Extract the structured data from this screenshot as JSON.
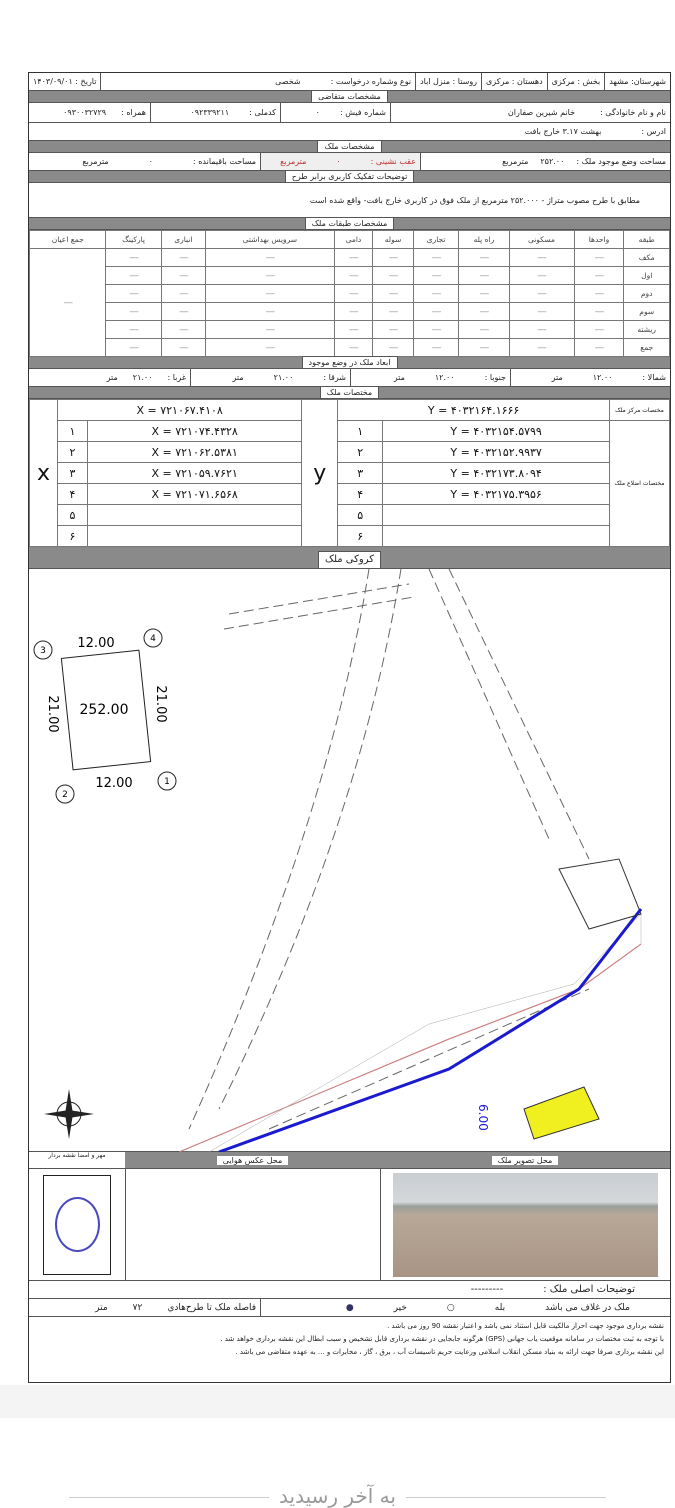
{
  "header": {
    "city": "شهرستان: مشهد",
    "section": "بخش : مرکزی",
    "district": "دهستان : مرکزی",
    "village": "روستا : منزل اباد",
    "request_type_label": "نوع وشماره درخواست :",
    "request_type": "شخصی",
    "date": "تاریخ : ۱۴۰۳/۰۹/۰۱"
  },
  "applicant": {
    "title": "مشخصات متقاضی",
    "name_label": "نام و نام خانوادگی :",
    "name": "خانم شیرین صفاران",
    "receipt_label": "شماره فیش :",
    "receipt": "۰",
    "national_id_label": "کدملی :",
    "national_id": "۰۹۲۳۳۹۲۱۱",
    "mobile_label": "همراه :",
    "mobile": "۰۹۳۰۰۳۲۷۲۹",
    "address_label": "ادرس :",
    "address": "بهشت ۳.۱۷ خارج بافت"
  },
  "property": {
    "title": "مشخصات ملک",
    "area_label": "مساحت وضع موجود ملک :",
    "area": "۲۵۲.۰۰",
    "unit": "مترمربع",
    "setback_label": "عقب نشینی :",
    "setback": "۰",
    "remaining_label": "مساحت باقیمانده :",
    "remaining": "۰"
  },
  "usage": {
    "title": "توضیحات تفکیک کاربری برابر طرح",
    "text": "مطابق با طرح مصوب متراژ - ۲۵۲.۰۰۰ مترمربع از ملک فوق در کاربری خارج بافت- واقع شده است"
  },
  "floors": {
    "title": "مشخصات طبقات ملک",
    "headers": [
      "طبقه",
      "واحدها",
      "مسکونی",
      "راه پله",
      "تجاری",
      "سوله",
      "دامی",
      "سرویس بهداشتی",
      "انباری",
      "پارکینگ",
      "جمع اعیان"
    ],
    "rows": [
      "مکف",
      "اول",
      "دوم",
      "سوم",
      "ریشته",
      "جمع"
    ],
    "empty": "-----"
  },
  "dimensions": {
    "title": "ابعاد ملک در وضع موجود",
    "north_label": "شمالا :",
    "north": "۱۲.۰۰",
    "south_label": "جنوبا :",
    "south": "۱۲.۰۰",
    "east_label": "شرقا :",
    "east": "۲۱.۰۰",
    "west_label": "غربا :",
    "west": "۲۱.۰۰",
    "unit": "متر"
  },
  "coords": {
    "title": "مختصات ملک",
    "center_label": "مختصات مرکز ملک",
    "corners_label": "مختصات اضلاع ملک",
    "x_axis": "x",
    "y_axis": "y",
    "x_center": "X = ۷۲۱۰۶۷.۴۱۰۸",
    "y_center": "Y = ۴۰۳۲۱۶۴.۱۶۶۶",
    "points": [
      {
        "n": "۱",
        "x": "X = ۷۲۱۰۷۴.۴۳۲۸",
        "y": "Y = ۴۰۳۲۱۵۴.۵۷۹۹"
      },
      {
        "n": "۲",
        "x": "X = ۷۲۱۰۶۲.۵۳۸۱",
        "y": "Y = ۴۰۳۲۱۵۲.۹۹۳۷"
      },
      {
        "n": "۳",
        "x": "X = ۷۲۱۰۵۹.۷۶۲۱",
        "y": "Y = ۴۰۳۲۱۷۳.۸۰۹۴"
      },
      {
        "n": "۴",
        "x": "X = ۷۲۱۰۷۱.۶۵۶۸",
        "y": "Y = ۴۰۳۲۱۷۵.۳۹۵۶"
      },
      {
        "n": "۵",
        "x": "",
        "y": ""
      },
      {
        "n": "۶",
        "x": "",
        "y": ""
      }
    ]
  },
  "sketch": {
    "title": "کروکی ملک",
    "area": "252.00",
    "top": "12.00",
    "bottom": "12.00",
    "left": "21.00",
    "right": "21.00",
    "corners": [
      "1",
      "2",
      "3",
      "4"
    ],
    "road_width": "6.00",
    "colors": {
      "boundary": "#1a1ad0",
      "plan_line": "#e04040",
      "parcel": "#f0f020"
    }
  },
  "photos": {
    "property_photo": "محل تصویر ملک",
    "aerial_photo": "محل عکس هوایی",
    "stamp": "مهر و امضا نقشه بردار"
  },
  "description": {
    "label": "توضیحات اصلی ملک :",
    "value": "---------"
  },
  "status": {
    "label": "ملک در غلاف می باشد",
    "yes": "بله",
    "no": "خیر",
    "selected": "no",
    "distance_label": "فاصله ملک تا طرح‌هادي",
    "distance": "۷۲",
    "unit": "متر"
  },
  "notes": [
    "نقشه برداری موجود جهت احراز مالکیت قابل استناد نمی باشد و اعتبار نقشه 90 روز می باشد .",
    "با توجه به ثبت مختصات در سامانه موقعیت یاب جهانی (GPS) هرگونه جابجایی در نقشه برداری قابل تشخیص و سبب ابطال این نقشه برداری خواهد شد .",
    "این نقشه برداری صرفا جهت ارائه به بنیاد مسکن انقلاب اسلامی ورعایت حریم تاسیسات آب ، برق ، گاز ، مخابرات و ... به عهده متقاضی می باشد ."
  ],
  "footer": {
    "end_text": "به آخر رسیدید"
  }
}
